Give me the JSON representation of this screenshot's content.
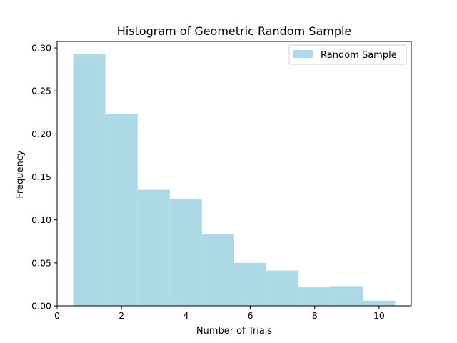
{
  "chart_data": {
    "type": "bar",
    "title": "Histogram of Geometric Random Sample",
    "xlabel": "Number of Trials",
    "ylabel": "Frequency",
    "xlim": [
      0,
      11
    ],
    "ylim": [
      0,
      0.3075
    ],
    "xticks": [
      0,
      2,
      4,
      6,
      8,
      10
    ],
    "xtick_labels": [
      "0",
      "2",
      "4",
      "6",
      "8",
      "10"
    ],
    "yticks": [
      0,
      0.05,
      0.1,
      0.15,
      0.2,
      0.25,
      0.3
    ],
    "ytick_labels": [
      "0.00",
      "0.05",
      "0.10",
      "0.15",
      "0.20",
      "0.25",
      "0.30"
    ],
    "grid": false,
    "legend_position": "top-right",
    "bar_color": "#add8e6",
    "series": [
      {
        "name": "Random Sample",
        "bins": [
          {
            "x0": 0.5,
            "x1": 1.5,
            "value": 0.293
          },
          {
            "x0": 1.5,
            "x1": 2.5,
            "value": 0.223
          },
          {
            "x0": 2.5,
            "x1": 3.5,
            "value": 0.135
          },
          {
            "x0": 3.5,
            "x1": 4.5,
            "value": 0.124
          },
          {
            "x0": 4.5,
            "x1": 5.5,
            "value": 0.083
          },
          {
            "x0": 5.5,
            "x1": 6.5,
            "value": 0.05
          },
          {
            "x0": 6.5,
            "x1": 7.5,
            "value": 0.041
          },
          {
            "x0": 7.5,
            "x1": 8.5,
            "value": 0.022
          },
          {
            "x0": 8.5,
            "x1": 9.5,
            "value": 0.023
          },
          {
            "x0": 9.5,
            "x1": 10.5,
            "value": 0.006
          }
        ]
      }
    ]
  }
}
